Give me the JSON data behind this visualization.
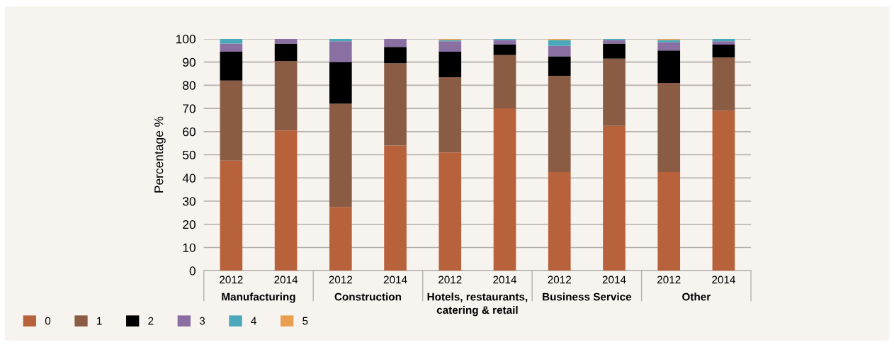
{
  "chart_data": {
    "type": "bar",
    "stacked": true,
    "ylabel": "Percentage %",
    "categories": [
      "2012",
      "2014",
      "2012",
      "2014",
      "2012",
      "2014",
      "2012",
      "2014",
      "2012",
      "2014"
    ],
    "annotations": [
      "Manufacturing",
      "Construction",
      "Hotels, restaurants,\ncatering & retail",
      "Business Service",
      "Other"
    ],
    "series": [
      {
        "name": "0",
        "color": "#b8623b",
        "values": [
          47.5,
          60.5,
          27.5,
          54,
          51,
          70,
          42.5,
          62.5,
          42.5,
          69
        ]
      },
      {
        "name": "1",
        "color": "#8a5c44",
        "values": [
          34.5,
          30,
          44.5,
          35.5,
          32.5,
          23,
          41.5,
          29,
          38.5,
          23
        ]
      },
      {
        "name": "2",
        "color": "#000000",
        "values": [
          12.5,
          7.5,
          18,
          7,
          11,
          4.5,
          8.5,
          6.5,
          14,
          5.5
        ]
      },
      {
        "name": "3",
        "color": "#8a6fa3",
        "values": [
          3.5,
          2,
          9,
          3.5,
          4.5,
          2,
          4.5,
          1.5,
          3.5,
          1.5
        ]
      },
      {
        "name": "4",
        "color": "#4aa8bb",
        "values": [
          2,
          0,
          1,
          0,
          0.5,
          0.5,
          2.5,
          0.5,
          1,
          1
        ]
      },
      {
        "name": "5",
        "color": "#e8a050",
        "values": [
          0,
          0,
          0,
          0,
          0.5,
          0,
          0.5,
          0,
          0.5,
          0
        ]
      }
    ],
    "ylim": [
      0,
      100
    ],
    "yticks": [
      0,
      10,
      20,
      30,
      40,
      50,
      60,
      70,
      80,
      90,
      100
    ],
    "grid": "y",
    "legend": "bottom left"
  }
}
